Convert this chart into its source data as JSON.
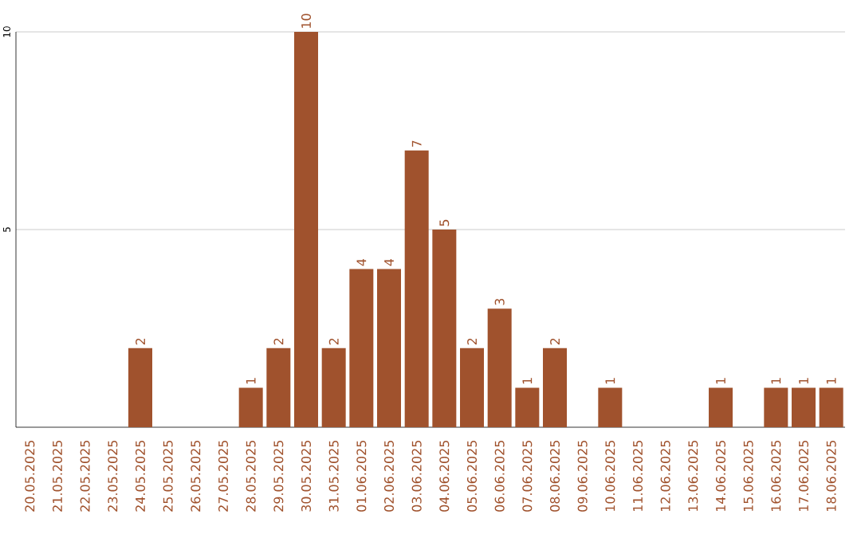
{
  "chart_data": {
    "type": "bar",
    "categories": [
      "20.05.2025",
      "21.05.2025",
      "22.05.2025",
      "23.05.2025",
      "24.05.2025",
      "25.05.2025",
      "26.05.2025",
      "27.05.2025",
      "28.05.2025",
      "29.05.2025",
      "30.05.2025",
      "31.05.2025",
      "01.06.2025",
      "02.06.2025",
      "03.06.2025",
      "04.06.2025",
      "05.06.2025",
      "06.06.2025",
      "07.06.2025",
      "08.06.2025",
      "09.06.2025",
      "10.06.2025",
      "11.06.2025",
      "12.06.2025",
      "13.06.2025",
      "14.06.2025",
      "15.06.2025",
      "16.06.2025",
      "17.06.2025",
      "18.06.2025"
    ],
    "values": [
      0,
      0,
      0,
      0,
      2,
      0,
      0,
      0,
      1,
      2,
      10,
      2,
      4,
      4,
      7,
      5,
      2,
      3,
      1,
      2,
      0,
      1,
      0,
      0,
      0,
      1,
      0,
      1,
      1,
      1
    ],
    "value_labels": [
      null,
      null,
      null,
      null,
      "2",
      null,
      null,
      null,
      "1",
      "2",
      "10",
      "2",
      "4",
      "4",
      "7",
      "5",
      "2",
      "3",
      "1",
      "2",
      null,
      "1",
      null,
      null,
      null,
      "1",
      null,
      "1",
      "1",
      "1"
    ],
    "color": "#a0522d",
    "ylim": [
      0,
      10
    ],
    "yticks": [
      5,
      10
    ],
    "grid": "y"
  }
}
